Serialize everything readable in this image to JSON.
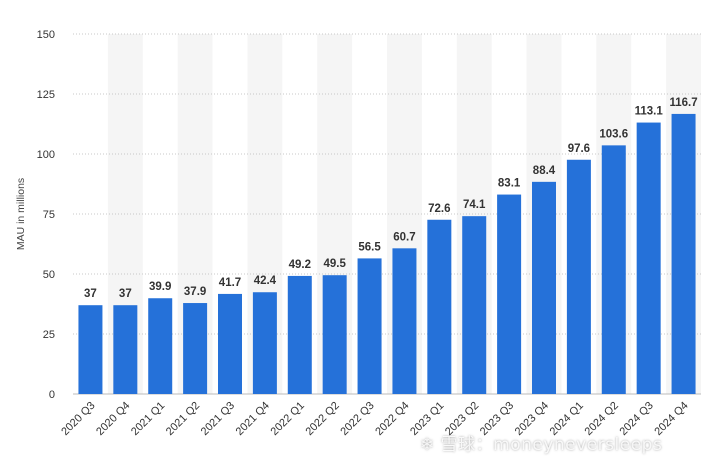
{
  "chart_data": {
    "type": "bar",
    "categories": [
      "2020 Q3",
      "2020 Q4",
      "2021 Q1",
      "2021 Q2",
      "2021 Q3",
      "2021 Q4",
      "2022 Q1",
      "2022 Q2",
      "2022 Q3",
      "2022 Q4",
      "2023 Q1",
      "2023 Q2",
      "2023 Q3",
      "2023 Q4",
      "2024 Q1",
      "2024 Q2",
      "2024 Q3",
      "2024 Q4"
    ],
    "values": [
      37,
      37,
      39.9,
      37.9,
      41.7,
      42.4,
      49.2,
      49.5,
      56.5,
      60.7,
      72.6,
      74.1,
      83.1,
      88.4,
      97.6,
      103.6,
      113.1,
      116.7
    ],
    "value_labels": [
      "37",
      "37",
      "39.9",
      "37.9",
      "41.7",
      "42.4",
      "49.2",
      "49.5",
      "56.5",
      "60.7",
      "72.6",
      "74.1",
      "83.1",
      "88.4",
      "97.6",
      "103.6",
      "113.1",
      "116.7"
    ],
    "ylabel": "MAU in millions",
    "xlabel": "",
    "ylim": [
      0,
      150
    ],
    "yticks": [
      0,
      25,
      50,
      75,
      100,
      125,
      150
    ],
    "grid": true,
    "bar_color": "#2571d9",
    "band_color": "#f5f5f5"
  },
  "watermark": {
    "text": "雪球：moneyneversleeps",
    "icon": "snowball-logo-icon"
  }
}
